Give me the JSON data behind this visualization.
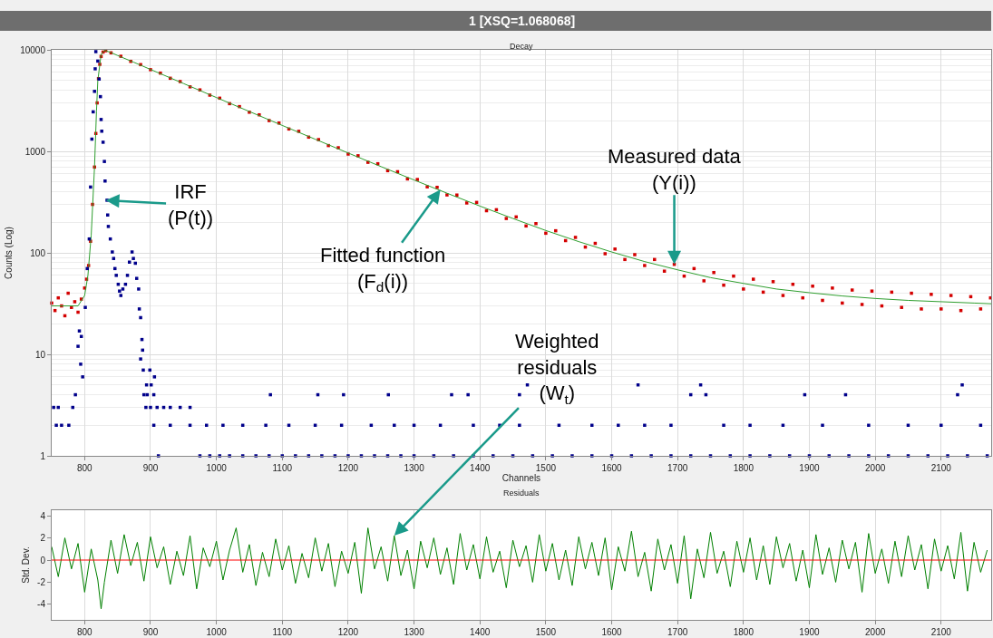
{
  "chart_data": [
    {
      "type": "scatter",
      "title": "1 [XSQ=1.068068]",
      "subtitle": "Decay",
      "xlabel": "Channels",
      "ylabel": "Counts (Log)",
      "log": true,
      "grid": true,
      "xlim": [
        750,
        2176
      ],
      "xticks": [
        800,
        900,
        1000,
        1100,
        1200,
        1300,
        1400,
        1500,
        1600,
        1700,
        1800,
        1900,
        2000,
        2100
      ],
      "ylim": [
        1,
        10000
      ],
      "yticks": [
        1,
        10,
        100,
        1000,
        10000
      ],
      "series": [
        {
          "marker": "square",
          "color": "#d40000",
          "x": [
            750,
            755,
            760,
            765,
            770,
            775,
            780,
            785,
            790,
            795,
            800,
            803,
            806,
            809,
            812,
            815,
            817,
            819,
            821,
            823,
            825,
            828,
            832,
            840,
            855,
            870,
            885,
            900,
            915,
            930,
            945,
            960,
            975,
            990,
            1005,
            1020,
            1035,
            1050,
            1065,
            1080,
            1095,
            1110,
            1125,
            1140,
            1155,
            1170,
            1185,
            1200,
            1215,
            1230,
            1245,
            1260,
            1275,
            1290,
            1305,
            1320,
            1335,
            1350,
            1365,
            1380,
            1395,
            1410,
            1425,
            1440,
            1455,
            1470,
            1485,
            1500,
            1515,
            1530,
            1545,
            1560,
            1575,
            1590,
            1605,
            1620,
            1635,
            1650,
            1665,
            1680,
            1695,
            1710,
            1725,
            1740,
            1755,
            1770,
            1785,
            1800,
            1815,
            1830,
            1845,
            1860,
            1875,
            1890,
            1905,
            1920,
            1935,
            1950,
            1965,
            1980,
            1995,
            2010,
            2025,
            2040,
            2055,
            2070,
            2085,
            2100,
            2115,
            2130,
            2145,
            2160,
            2175
          ],
          "values": [
            32,
            27,
            36,
            30,
            24,
            40,
            29,
            33,
            26,
            35,
            45,
            55,
            75,
            130,
            300,
            700,
            1500,
            3000,
            5200,
            7200,
            8600,
            9500,
            9800,
            9350,
            8640,
            7700,
            7150,
            6380,
            5900,
            5250,
            4870,
            4320,
            4030,
            3580,
            3340,
            2950,
            2760,
            2430,
            2290,
            2010,
            1900,
            1660,
            1575,
            1380,
            1305,
            1140,
            1085,
            940,
            905,
            780,
            755,
            645,
            630,
            535,
            528,
            447,
            442,
            372,
            371,
            310,
            314,
            260,
            266,
            218,
            226,
            184,
            194,
            156,
            165,
            132,
            142,
            114,
            124,
            98,
            109,
            86,
            96,
            75,
            86,
            66,
            77,
            59,
            70,
            53,
            64,
            48,
            59,
            44,
            55,
            41,
            52,
            38,
            49,
            36,
            47,
            34,
            45,
            32,
            43,
            31,
            42,
            30,
            41,
            29,
            40,
            28,
            39,
            28,
            38,
            27,
            37,
            28,
            36
          ]
        },
        {
          "type": "line",
          "marker": "none",
          "color": "#2e9e2e",
          "x": [
            750,
            790,
            800,
            805,
            810,
            815,
            818,
            820,
            825,
            830,
            840,
            850,
            875,
            900,
            950,
            1000,
            1050,
            1100,
            1150,
            1200,
            1250,
            1300,
            1350,
            1400,
            1450,
            1500,
            1550,
            1600,
            1650,
            1700,
            1750,
            1800,
            1850,
            1900,
            1950,
            2000,
            2050,
            2100,
            2150,
            2176
          ],
          "values": [
            30,
            30,
            38,
            60,
            150,
            700,
            2500,
            5000,
            9000,
            9900,
            9410,
            8800,
            7530,
            6410,
            4660,
            3390,
            2470,
            1800,
            1316,
            963,
            707,
            522,
            387,
            289,
            218,
            166,
            129,
            102,
            82,
            68,
            57,
            50,
            44,
            40.5,
            37.6,
            35.5,
            34,
            33,
            32,
            31.5
          ]
        },
        {
          "marker": "square",
          "color": "#00008b",
          "x": [
            753,
            760,
            757,
            765,
            776,
            782,
            786,
            790,
            792,
            794,
            795,
            797,
            801,
            804,
            807,
            809,
            811,
            813,
            815,
            816,
            817,
            820,
            822,
            824,
            825,
            826,
            828,
            830,
            831,
            834,
            835,
            836,
            839,
            842,
            844,
            846,
            848,
            851,
            853,
            855,
            858,
            862,
            865,
            868,
            872,
            874,
            877,
            879,
            882,
            883,
            885,
            887,
            888,
            885,
            889,
            894,
            899,
            901,
            906,
            890,
            895,
            905,
            912,
            893,
            900,
            910,
            920,
            930,
            945,
            960,
            975,
            990,
            1005,
            1020,
            1040,
            1060,
            1080,
            1100,
            1120,
            1140,
            1160,
            1180,
            1200,
            1220,
            1240,
            1260,
            1280,
            1300,
            1330,
            1360,
            1390,
            1420,
            1450,
            1480,
            1510,
            1540,
            1570,
            1600,
            1630,
            1660,
            1690,
            1720,
            1750,
            1780,
            1810,
            1840,
            1870,
            1900,
            1930,
            1960,
            1990,
            2020,
            2050,
            2080,
            2110,
            2140,
            2170,
            905,
            930,
            960,
            985,
            1010,
            1040,
            1075,
            1110,
            1150,
            1190,
            1235,
            1270,
            1300,
            1340,
            1390,
            1430,
            1460,
            1520,
            1570,
            1610,
            1650,
            1690,
            1770,
            1810,
            1860,
            1920,
            1990,
            2050,
            2100,
            2160,
            1082,
            1154,
            1193,
            1261,
            1357,
            1382,
            1460,
            1720,
            1743,
            1893,
            1955,
            2125,
            1472,
            1640,
            1735,
            2132
          ],
          "values": [
            3,
            3,
            2,
            2,
            2,
            3,
            4,
            12,
            17,
            8,
            15,
            6,
            29,
            70,
            137,
            445,
            1320,
            2450,
            3900,
            6500,
            9600,
            7750,
            5150,
            3460,
            2060,
            1580,
            1230,
            795,
            510,
            330,
            236,
            182,
            137,
            102,
            88,
            70,
            60,
            49,
            42,
            38,
            44,
            49,
            60,
            81,
            102,
            88,
            79,
            56,
            44,
            28,
            23,
            14,
            11,
            9,
            7,
            5,
            7,
            5,
            6,
            4,
            4,
            4,
            1,
            3,
            3,
            3,
            3,
            3,
            3,
            3,
            1,
            1,
            1,
            1,
            1,
            1,
            1,
            1,
            1,
            1,
            1,
            1,
            1,
            1,
            1,
            1,
            1,
            1,
            1,
            1,
            1,
            1,
            1,
            1,
            1,
            1,
            1,
            1,
            1,
            1,
            1,
            1,
            1,
            1,
            1,
            1,
            1,
            1,
            1,
            1,
            1,
            1,
            1,
            1,
            1,
            1,
            1,
            2,
            2,
            2,
            2,
            2,
            2,
            2,
            2,
            2,
            2,
            2,
            2,
            2,
            2,
            2,
            2,
            2,
            2,
            2,
            2,
            2,
            2,
            2,
            2,
            2,
            2,
            2,
            2,
            2,
            2,
            4,
            4,
            4,
            4,
            4,
            4,
            4,
            4,
            4,
            4,
            4,
            4,
            5,
            5,
            5,
            5
          ]
        }
      ],
      "annotations": [
        {
          "text": "IRF\n(P(t))",
          "x": 832,
          "y": 330
        },
        {
          "text": "Fitted function\n(F$_{d}$(i))",
          "x": 1340,
          "y": 420
        },
        {
          "text": "Measured data\n(Y(i))",
          "x": 1695,
          "y": 77
        }
      ]
    },
    {
      "type": "line",
      "title": "Residuals",
      "ylabel": "Std. Dev.",
      "grid": "x",
      "xlim": [
        750,
        2176
      ],
      "xticks": [
        800,
        900,
        1000,
        1100,
        1200,
        1300,
        1400,
        1500,
        1600,
        1700,
        1800,
        1900,
        2000,
        2100
      ],
      "ylim": [
        -5.4,
        4.5
      ],
      "yticks": [
        -4,
        -2,
        0,
        2,
        4
      ],
      "x": [
        750,
        760,
        770,
        780,
        790,
        800,
        810,
        820,
        825,
        830,
        840,
        850,
        860,
        870,
        880,
        890,
        900,
        910,
        920,
        930,
        940,
        950,
        960,
        970,
        980,
        990,
        1000,
        1010,
        1020,
        1030,
        1040,
        1050,
        1060,
        1070,
        1080,
        1090,
        1100,
        1110,
        1120,
        1130,
        1140,
        1150,
        1160,
        1170,
        1180,
        1190,
        1200,
        1210,
        1220,
        1230,
        1240,
        1250,
        1260,
        1270,
        1280,
        1290,
        1300,
        1310,
        1320,
        1330,
        1340,
        1350,
        1360,
        1370,
        1380,
        1390,
        1400,
        1410,
        1420,
        1430,
        1440,
        1450,
        1460,
        1470,
        1480,
        1490,
        1500,
        1510,
        1520,
        1530,
        1540,
        1550,
        1560,
        1570,
        1580,
        1590,
        1600,
        1610,
        1620,
        1630,
        1640,
        1650,
        1660,
        1670,
        1680,
        1690,
        1700,
        1710,
        1720,
        1730,
        1740,
        1750,
        1760,
        1770,
        1780,
        1790,
        1800,
        1810,
        1820,
        1830,
        1840,
        1850,
        1860,
        1870,
        1880,
        1890,
        1900,
        1910,
        1920,
        1930,
        1940,
        1950,
        1960,
        1970,
        1980,
        1990,
        2000,
        2010,
        2020,
        2030,
        2040,
        2050,
        2060,
        2070,
        2080,
        2090,
        2100,
        2110,
        2120,
        2130,
        2140,
        2150,
        2160,
        2170
      ],
      "series": [
        {
          "color": "#008000",
          "values": [
            1.2,
            -1.5,
            2.0,
            -0.8,
            1.5,
            -2.9,
            1.0,
            -1.8,
            -4.4,
            -2.0,
            1.8,
            -1.2,
            2.3,
            -0.5,
            1.6,
            -1.9,
            2.1,
            -0.7,
            1.2,
            -2.2,
            0.8,
            -1.4,
            2.2,
            -2.6,
            1.1,
            -0.6,
            1.7,
            -1.8,
            0.9,
            2.9,
            -1.1,
            1.4,
            -2.3,
            0.7,
            -1.5,
            1.9,
            -0.9,
            1.3,
            -2.1,
            0.6,
            -1.6,
            2.0,
            -1.0,
            1.5,
            -2.4,
            0.8,
            -1.2,
            1.6,
            -3.0,
            2.9,
            -0.8,
            1.2,
            -1.9,
            2.2,
            -1.4,
            0.9,
            -2.6,
            1.7,
            -0.7,
            2.0,
            -1.3,
            1.1,
            -2.2,
            2.4,
            -0.9,
            1.4,
            -1.7,
            2.1,
            -1.1,
            0.8,
            -2.5,
            1.8,
            -0.6,
            1.3,
            -2.0,
            2.3,
            -1.0,
            1.5,
            -1.8,
            0.9,
            -2.3,
            2.1,
            -0.8,
            1.6,
            -1.4,
            2.0,
            -2.7,
            1.2,
            -1.0,
            2.6,
            -1.5,
            0.7,
            -2.8,
            1.9,
            -0.9,
            1.4,
            -2.1,
            2.2,
            -3.5,
            1.0,
            -1.6,
            2.5,
            -1.2,
            0.8,
            -2.4,
            1.7,
            -1.1,
            2.0,
            -1.8,
            1.3,
            -2.2,
            2.1,
            -0.7,
            1.5,
            -1.9,
            0.9,
            -2.5,
            2.3,
            -1.3,
            1.1,
            -2.0,
            1.8,
            -0.8,
            1.6,
            -2.9,
            2.4,
            -1.2,
            1.0,
            -2.1,
            1.7,
            -1.5,
            2.2,
            -0.9,
            1.4,
            -2.6,
            1.9,
            -1.0,
            1.3,
            -1.7,
            2.5,
            -2.8,
            1.6,
            -1.1,
            0.9
          ]
        }
      ],
      "ref_lines": [
        {
          "axis": "y",
          "value": 0,
          "color": "#ff0000"
        }
      ],
      "annotations": [
        {
          "text": "Weighted\nresiduals\n(W$_{t}$)",
          "x": 1270,
          "y": 2.2
        }
      ]
    }
  ]
}
